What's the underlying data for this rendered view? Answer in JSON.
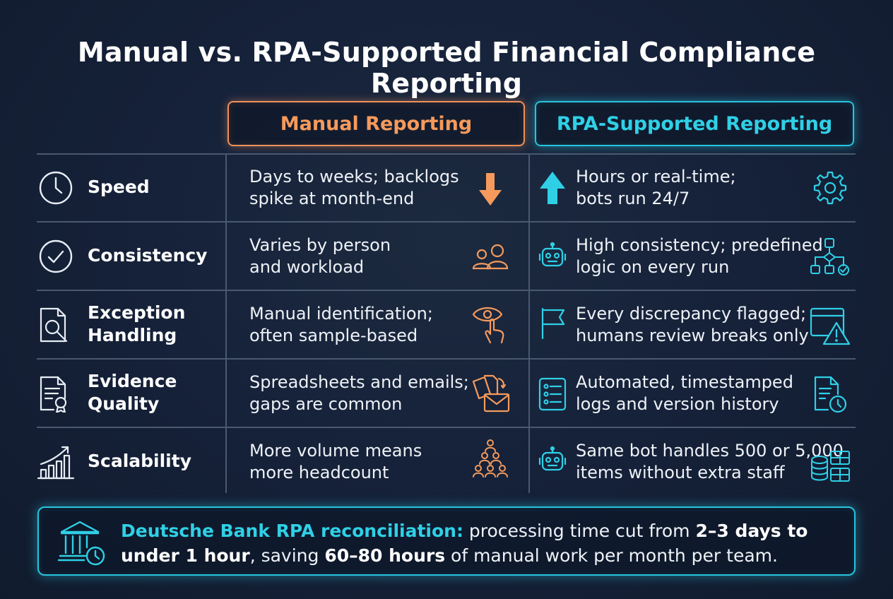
{
  "title": "Manual vs. RPA-Supported Financial Compliance Reporting",
  "columns": {
    "manual": "Manual Reporting",
    "rpa": "RPA-Supported Reporting"
  },
  "rows": [
    {
      "criterion": "Speed",
      "criterion_icon": "clock-icon",
      "manual": "Days to weeks; backlogs\nspike at month-end",
      "manual_icon": "arrow-down-icon",
      "rpa": "Hours or real-time;\nbots run 24/7",
      "rpa_icon_left": "arrow-up-icon",
      "rpa_icon_right": "gear-icon"
    },
    {
      "criterion": "Consistency",
      "criterion_icon": "checkmark-circle-icon",
      "manual": "Varies by person\nand workload",
      "manual_icon": "people-icon",
      "rpa": "High consistency; predefined\nlogic on every run",
      "rpa_icon_left": "robot-icon",
      "rpa_icon_right": "workflow-icon"
    },
    {
      "criterion": "Exception\nHandling",
      "criterion_icon": "document-search-icon",
      "manual": "Manual identification;\noften sample-based",
      "manual_icon": "eye-hand-icon",
      "rpa": "Every discrepancy flagged;\nhumans review breaks only",
      "rpa_icon_left": "flag-icon",
      "rpa_icon_right": "browser-warning-icon"
    },
    {
      "criterion": "Evidence\nQuality",
      "criterion_icon": "certificate-icon",
      "manual": "Spreadsheets and emails;\ngaps are common",
      "manual_icon": "documents-email-icon",
      "rpa": "Automated, timestamped\nlogs and version history",
      "rpa_icon_left": "checklist-icon",
      "rpa_icon_right": "document-history-icon"
    },
    {
      "criterion": "Scalability",
      "criterion_icon": "growth-chart-icon",
      "manual": "More volume means\nmore headcount",
      "manual_icon": "headcount-pyramid-icon",
      "rpa": "Same bot handles 500 or 5,000\nitems without extra staff",
      "rpa_icon_left": "robot-icon",
      "rpa_icon_right": "database-table-icon"
    }
  ],
  "callout": {
    "icon": "bank-clock-icon",
    "lead": "Deutsche Bank RPA reconciliation:",
    "t1": " processing time cut from ",
    "b1": "2–3 days to under 1 hour",
    "t2": ", saving ",
    "b2": "60–80 hours",
    "t3": " of manual work per month per team."
  },
  "colors": {
    "manual_accent": "#f0915a",
    "rpa_accent": "#27c4dc",
    "background": "#16223a"
  }
}
